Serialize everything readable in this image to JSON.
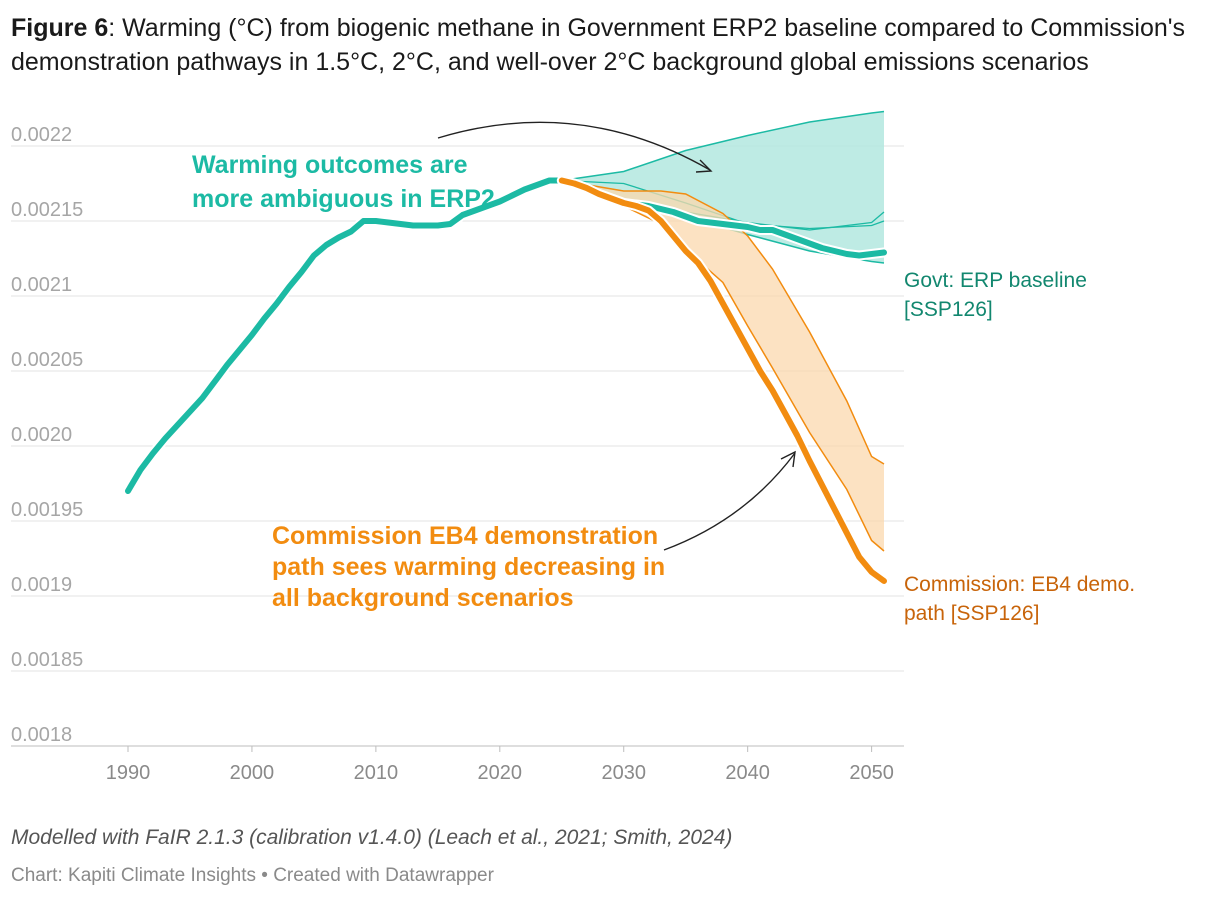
{
  "figure": {
    "title_bold": "Figure 6",
    "title_rest": ": Warming (°C) from biogenic methane in Government ERP2 baseline compared to Commission's demonstration pathways in 1.5°C, 2°C, and well-over 2°C background global emissions scenarios",
    "note": "Modelled with FaIR 2.1.3 (calibration v1.4.0) (Leach et al., 2021; Smith, 2024)",
    "credit": "Chart: Kapiti Climate Insights • Created with Datawrapper"
  },
  "chart_data": {
    "type": "line",
    "title": "Warming (°C) from biogenic methane in Government ERP2 baseline compared to Commission's demonstration pathways in 1.5°C, 2°C, and well-over 2°C background global emissions scenarios",
    "xlabel": "",
    "ylabel": "",
    "xlim": [
      1990,
      2051
    ],
    "ylim": [
      0.0018,
      0.0022
    ],
    "x_ticks": [
      "1990",
      "2000",
      "2010",
      "2020",
      "2030",
      "2040",
      "2050"
    ],
    "y_ticks": [
      "0.0022",
      "0.00215",
      "0.0021",
      "0.00205",
      "0.0020",
      "0.00195",
      "0.0019",
      "0.00185",
      "0.0018"
    ],
    "grid": "horizontal",
    "colors": {
      "teal": "#1cbaa4",
      "teal_band": "#b3e8df",
      "teal_label": "#12876f",
      "orange": "#f28c10",
      "orange_band": "#fbd8ad",
      "orange_label": "#c8640a",
      "grid": "#e3e3e3",
      "axis": "#bdbdbd"
    },
    "series": [
      {
        "name": "Govt: ERP baseline [SSP126]",
        "color": "#1cbaa4",
        "x": [
          1990,
          1991,
          1992,
          1993,
          1994,
          1995,
          1996,
          1997,
          1998,
          1999,
          2000,
          2001,
          2002,
          2003,
          2004,
          2005,
          2006,
          2007,
          2008,
          2009,
          2010,
          2011,
          2012,
          2013,
          2014,
          2015,
          2016,
          2017,
          2018,
          2019,
          2020,
          2021,
          2022,
          2023,
          2024,
          2025,
          2026,
          2027,
          2028,
          2029,
          2030,
          2031,
          2032,
          2033,
          2034,
          2035,
          2036,
          2037,
          2038,
          2039,
          2040,
          2041,
          2042,
          2043,
          2044,
          2045,
          2046,
          2047,
          2048,
          2049,
          2050,
          2051
        ],
        "y": [
          0.00197,
          0.001984,
          0.001995,
          0.002005,
          0.002014,
          0.002023,
          0.002032,
          0.002043,
          0.002054,
          0.002064,
          0.002074,
          0.002085,
          0.002095,
          0.002106,
          0.002116,
          0.002127,
          0.002134,
          0.002139,
          0.002143,
          0.00215,
          0.00215,
          0.002149,
          0.002148,
          0.002147,
          0.002147,
          0.002147,
          0.002148,
          0.002154,
          0.002157,
          0.00216,
          0.002163,
          0.002167,
          0.002171,
          0.002174,
          0.002177,
          0.002177,
          0.002174,
          0.002171,
          0.002168,
          0.002165,
          0.002162,
          0.002161,
          0.00216,
          0.002158,
          0.002156,
          0.002153,
          0.00215,
          0.002149,
          0.002148,
          0.002147,
          0.002146,
          0.002144,
          0.002144,
          0.002141,
          0.002138,
          0.002135,
          0.002132,
          0.00213,
          0.002128,
          0.002127,
          0.002128,
          0.002129
        ]
      },
      {
        "name": "Commission: EB4 demo. path [SSP126]",
        "color": "#f28c10",
        "x": [
          2025,
          2026,
          2027,
          2028,
          2029,
          2030,
          2031,
          2032,
          2033,
          2034,
          2035,
          2036,
          2037,
          2038,
          2039,
          2040,
          2041,
          2042,
          2043,
          2044,
          2045,
          2046,
          2047,
          2048,
          2049,
          2050,
          2051
        ],
        "y": [
          0.002177,
          0.002175,
          0.002172,
          0.002168,
          0.002165,
          0.002162,
          0.00216,
          0.002157,
          0.00215,
          0.00214,
          0.00213,
          0.002122,
          0.00211,
          0.002095,
          0.00208,
          0.002065,
          0.00205,
          0.002037,
          0.002022,
          0.002007,
          0.00199,
          0.001974,
          0.001958,
          0.001942,
          0.001926,
          0.001916,
          0.00191
        ]
      }
    ],
    "bands": [
      {
        "series": "Govt: ERP baseline [SSP126]",
        "color": "#b3e8df",
        "x": [
          2025,
          2030,
          2035,
          2040,
          2045,
          2050,
          2051
        ],
        "upper": [
          0.002177,
          0.002183,
          0.002197,
          0.002207,
          0.002216,
          0.002222,
          0.002223
        ],
        "lower": [
          0.002177,
          0.00216,
          0.002153,
          0.002141,
          0.00213,
          0.002123,
          0.002122
        ],
        "upper_mid": [
          0.002177,
          0.002175,
          0.002162,
          0.002148,
          0.002145,
          0.002147,
          0.00215
        ],
        "lower_mid": [
          0.002177,
          0.002163,
          0.002156,
          0.002149,
          0.002144,
          0.002149,
          0.002156
        ]
      },
      {
        "series": "Commission: EB4 demo. path [SSP126]",
        "color": "#fbd8ad",
        "x": [
          2025,
          2030,
          2033,
          2035,
          2038,
          2040,
          2042,
          2045,
          2048,
          2050,
          2051
        ],
        "upper": [
          0.002177,
          0.00217,
          0.00217,
          0.002168,
          0.002155,
          0.00214,
          0.002118,
          0.002076,
          0.00203,
          0.001993,
          0.001988
        ],
        "lower": [
          0.002177,
          0.00216,
          0.002148,
          0.002131,
          0.002109,
          0.00208,
          0.002052,
          0.002009,
          0.001971,
          0.001937,
          0.00193
        ]
      }
    ],
    "annotations": {
      "teal": [
        "Warming outcomes are",
        "more ambiguous in ERP2"
      ],
      "orange": [
        "Commission EB4 demonstration",
        "path sees warming decreasing in",
        "all background scenarios"
      ]
    },
    "end_labels": {
      "teal": [
        "Govt: ERP baseline",
        "[SSP126]"
      ],
      "orange": [
        "Commission: EB4 demo.",
        "path [SSP126]"
      ]
    }
  }
}
